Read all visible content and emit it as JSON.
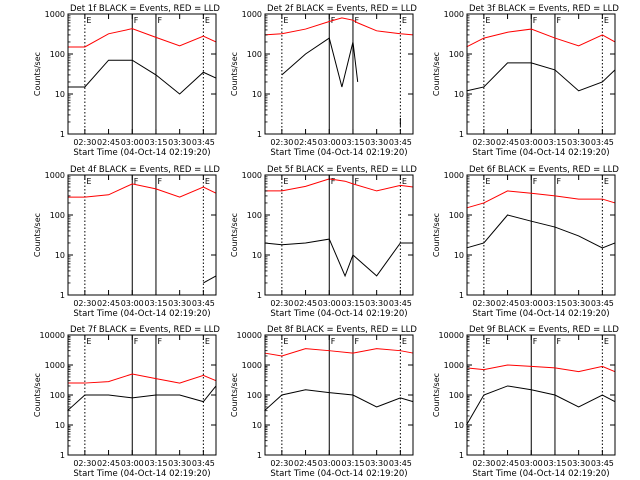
{
  "figure": {
    "colors": {
      "events": "#000000",
      "lld": "#ff0000",
      "axes": "#000000",
      "background": "#ffffff"
    },
    "xlabel": "Start Time (04-Oct-14 02:19:20)",
    "ylabel": "Counts/sec",
    "x_ticks": [
      "02:30",
      "02:45",
      "03:00",
      "03:15",
      "03:30",
      "03:45"
    ],
    "markers": {
      "solid": [
        "03:00",
        "03:15"
      ],
      "dotted": [
        "02:30",
        "03:45"
      ]
    },
    "marker_labels": [
      "E",
      "F",
      "F",
      "E"
    ]
  },
  "chart_data": [
    {
      "panel": "Det 1f",
      "type": "line",
      "title": "Det 1f BLACK = Events, RED = LLD",
      "yscale": "log",
      "ylim": [
        1,
        1000
      ],
      "yticks": [
        "1",
        "10",
        "100",
        "1000"
      ],
      "x": [
        "02:19",
        "02:30",
        "02:45",
        "03:00",
        "03:15",
        "03:30",
        "03:45",
        "03:53"
      ],
      "series": [
        {
          "name": "LLD",
          "color": "red",
          "values": [
            150,
            150,
            320,
            430,
            260,
            160,
            280,
            200
          ]
        },
        {
          "name": "Events",
          "color": "black",
          "values": [
            15,
            15,
            70,
            70,
            30,
            10,
            35,
            25
          ]
        }
      ]
    },
    {
      "panel": "Det 2f",
      "type": "line",
      "title": "Det 2f BLACK = Events, RED = LLD",
      "yscale": "log",
      "ylim": [
        1,
        1000
      ],
      "yticks": [
        "1",
        "10",
        "100",
        "1000"
      ],
      "x": [
        "02:19",
        "02:30",
        "02:45",
        "03:00",
        "03:08",
        "03:15",
        "03:18",
        "03:30",
        "03:45",
        "03:53"
      ],
      "series": [
        {
          "name": "LLD",
          "color": "red",
          "values": [
            300,
            320,
            420,
            650,
            800,
            700,
            600,
            380,
            320,
            300
          ]
        },
        {
          "name": "Events",
          "color": "black",
          "values": [
            null,
            30,
            100,
            250,
            15,
            200,
            20,
            null,
            2,
            null
          ]
        }
      ]
    },
    {
      "panel": "Det 3f",
      "type": "line",
      "title": "Det 3f BLACK = Events, RED = LLD",
      "yscale": "log",
      "ylim": [
        1,
        1000
      ],
      "yticks": [
        "1",
        "10",
        "100",
        "1000"
      ],
      "x": [
        "02:19",
        "02:30",
        "02:45",
        "03:00",
        "03:15",
        "03:30",
        "03:45",
        "03:53"
      ],
      "series": [
        {
          "name": "LLD",
          "color": "red",
          "values": [
            150,
            250,
            350,
            420,
            250,
            160,
            300,
            200
          ]
        },
        {
          "name": "Events",
          "color": "black",
          "values": [
            12,
            15,
            60,
            60,
            40,
            12,
            20,
            40
          ]
        }
      ]
    },
    {
      "panel": "Det 4f",
      "type": "line",
      "title": "Det 4f BLACK = Events, RED = LLD",
      "yscale": "log",
      "ylim": [
        1,
        1000
      ],
      "yticks": [
        "1",
        "10",
        "100",
        "1000"
      ],
      "x": [
        "02:19",
        "02:30",
        "02:45",
        "03:00",
        "03:15",
        "03:30",
        "03:45",
        "03:53"
      ],
      "series": [
        {
          "name": "LLD",
          "color": "red",
          "values": [
            280,
            280,
            320,
            600,
            450,
            280,
            500,
            350
          ]
        },
        {
          "name": "Events",
          "color": "black",
          "values": [
            null,
            null,
            null,
            null,
            null,
            null,
            2,
            3
          ]
        }
      ]
    },
    {
      "panel": "Det 5f",
      "type": "line",
      "title": "Det 5f BLACK = Events, RED = LLD",
      "yscale": "log",
      "ylim": [
        1,
        1000
      ],
      "yticks": [
        "1",
        "10",
        "100",
        "1000"
      ],
      "x": [
        "02:19",
        "02:30",
        "02:45",
        "03:00",
        "03:10",
        "03:15",
        "03:30",
        "03:45",
        "03:53"
      ],
      "series": [
        {
          "name": "LLD",
          "color": "red",
          "values": [
            400,
            400,
            520,
            800,
            700,
            600,
            400,
            550,
            500
          ]
        },
        {
          "name": "Events",
          "color": "black",
          "values": [
            20,
            18,
            20,
            25,
            3,
            10,
            3,
            20,
            20
          ]
        }
      ]
    },
    {
      "panel": "Det 6f",
      "type": "line",
      "title": "Det 6f BLACK = Events, RED = LLD",
      "yscale": "log",
      "ylim": [
        1,
        1000
      ],
      "yticks": [
        "1",
        "10",
        "100",
        "1000"
      ],
      "x": [
        "02:19",
        "02:30",
        "02:45",
        "03:00",
        "03:15",
        "03:30",
        "03:45",
        "03:53"
      ],
      "series": [
        {
          "name": "LLD",
          "color": "red",
          "values": [
            150,
            200,
            400,
            350,
            300,
            250,
            250,
            200
          ]
        },
        {
          "name": "Events",
          "color": "black",
          "values": [
            15,
            20,
            100,
            70,
            50,
            30,
            15,
            20
          ]
        }
      ]
    },
    {
      "panel": "Det 7f",
      "type": "line",
      "title": "Det 7f BLACK = Events, RED = LLD",
      "yscale": "log",
      "ylim": [
        1,
        10000
      ],
      "yticks": [
        "1",
        "10",
        "100",
        "1000",
        "10000"
      ],
      "x": [
        "02:19",
        "02:30",
        "02:45",
        "03:00",
        "03:15",
        "03:30",
        "03:45",
        "03:53"
      ],
      "series": [
        {
          "name": "LLD",
          "color": "red",
          "values": [
            250,
            250,
            280,
            500,
            350,
            250,
            450,
            300
          ]
        },
        {
          "name": "Events",
          "color": "black",
          "values": [
            30,
            100,
            100,
            80,
            100,
            100,
            60,
            200
          ]
        }
      ]
    },
    {
      "panel": "Det 8f",
      "type": "line",
      "title": "Det 8f BLACK = Events, RED = LLD",
      "yscale": "log",
      "ylim": [
        1,
        10000
      ],
      "yticks": [
        "1",
        "10",
        "100",
        "1000",
        "10000"
      ],
      "x": [
        "02:19",
        "02:30",
        "02:45",
        "03:00",
        "03:15",
        "03:30",
        "03:45",
        "03:53"
      ],
      "series": [
        {
          "name": "LLD",
          "color": "red",
          "values": [
            2500,
            2000,
            3500,
            3000,
            2500,
            3500,
            3000,
            2500
          ]
        },
        {
          "name": "Events",
          "color": "black",
          "values": [
            30,
            100,
            150,
            120,
            100,
            40,
            80,
            60
          ]
        }
      ]
    },
    {
      "panel": "Det 9f",
      "type": "line",
      "title": "Det 9f BLACK = Events, RED = LLD",
      "yscale": "log",
      "ylim": [
        1,
        10000
      ],
      "yticks": [
        "1",
        "10",
        "100",
        "1000",
        "10000"
      ],
      "x": [
        "02:19",
        "02:30",
        "02:45",
        "03:00",
        "03:15",
        "03:30",
        "03:45",
        "03:53"
      ],
      "series": [
        {
          "name": "LLD",
          "color": "red",
          "values": [
            800,
            700,
            1000,
            900,
            800,
            600,
            900,
            600
          ]
        },
        {
          "name": "Events",
          "color": "black",
          "values": [
            10,
            100,
            200,
            150,
            100,
            40,
            100,
            60
          ]
        }
      ]
    }
  ]
}
